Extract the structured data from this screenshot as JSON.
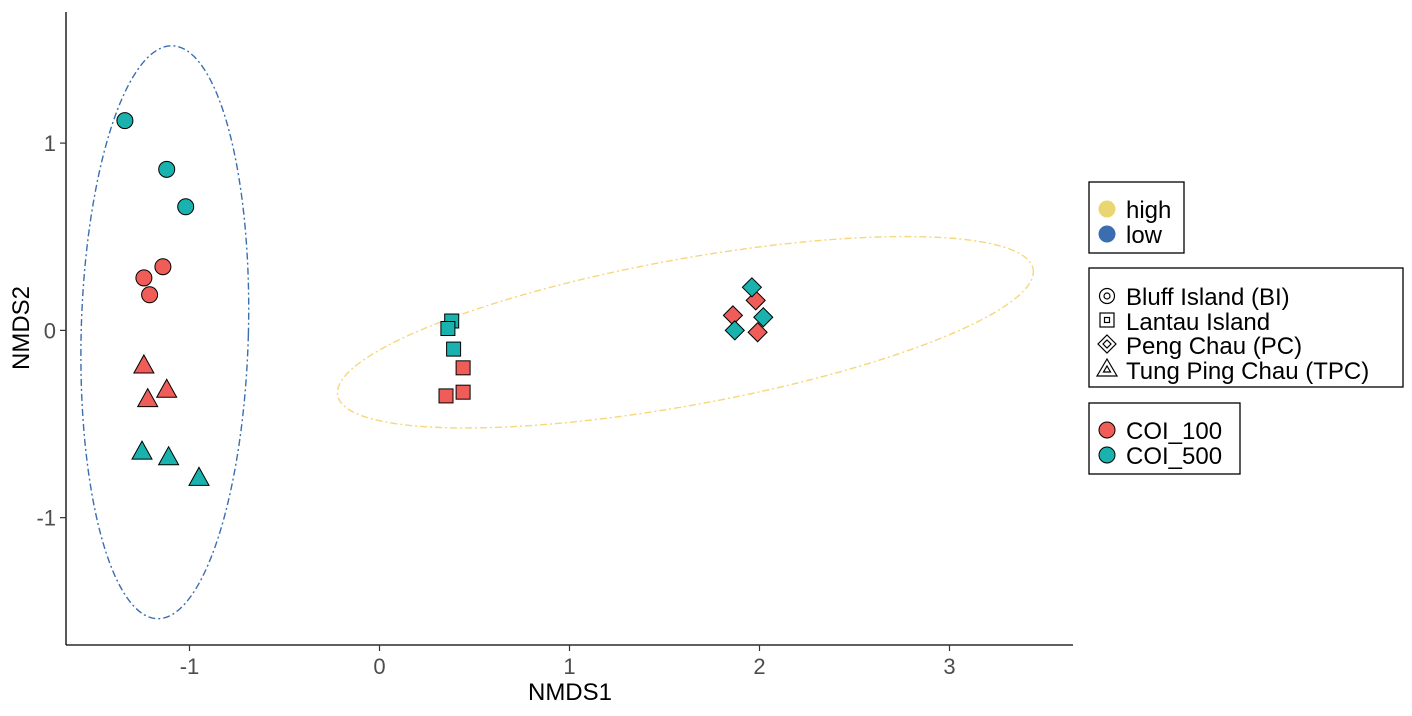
{
  "chart_data": {
    "type": "scatter",
    "xlabel": "NMDS1",
    "ylabel": "NMDS2",
    "xlim": [
      -1.65,
      3.65
    ],
    "ylim": [
      -1.68,
      1.7
    ],
    "x_ticks": [
      -1,
      0,
      1,
      2,
      3
    ],
    "y_ticks": [
      -1,
      0,
      1
    ],
    "grid": false,
    "legend_position": "right",
    "colors": {
      "COI_100": "#f05c58",
      "COI_500": "#1ab2ae",
      "high": "#f0d878",
      "low": "#3a6eb0",
      "high_ellipse": "#f6d77a",
      "low_ellipse": "#3a6eb0"
    },
    "legends": [
      {
        "title": "",
        "kind": "color-dot",
        "items": [
          {
            "label": "high",
            "color": "#ead671"
          },
          {
            "label": "low",
            "color": "#3a6eb0"
          }
        ]
      },
      {
        "title": "",
        "kind": "shape",
        "items": [
          {
            "label": "Bluff Island (BI)",
            "shape": "circle"
          },
          {
            "label": "Lantau Island",
            "shape": "square"
          },
          {
            "label": "Peng Chau (PC)",
            "shape": "diamond"
          },
          {
            "label": "Tung Ping Chau (TPC)",
            "shape": "triangle"
          }
        ]
      },
      {
        "title": "",
        "kind": "fill",
        "items": [
          {
            "label": "COI_100",
            "color": "#f05c58"
          },
          {
            "label": "COI_500",
            "color": "#1ab2ae"
          }
        ]
      }
    ],
    "ellipses": [
      {
        "group": "low",
        "cx": -1.13,
        "cy": -0.01,
        "rx": 0.44,
        "ry": 1.53,
        "angle_deg": -1.5
      },
      {
        "group": "high",
        "cx": 1.61,
        "cy": -0.01,
        "rx": 1.86,
        "ry": 0.39,
        "angle_deg": 10.3
      }
    ],
    "points": [
      {
        "x": -1.34,
        "y": 1.12,
        "site": "Bluff Island (BI)",
        "marker": "COI_500"
      },
      {
        "x": -1.12,
        "y": 0.86,
        "site": "Bluff Island (BI)",
        "marker": "COI_500"
      },
      {
        "x": -1.02,
        "y": 0.66,
        "site": "Bluff Island (BI)",
        "marker": "COI_500"
      },
      {
        "x": -1.24,
        "y": 0.28,
        "site": "Bluff Island (BI)",
        "marker": "COI_100"
      },
      {
        "x": -1.14,
        "y": 0.34,
        "site": "Bluff Island (BI)",
        "marker": "COI_100"
      },
      {
        "x": -1.21,
        "y": 0.19,
        "site": "Bluff Island (BI)",
        "marker": "COI_100"
      },
      {
        "x": -1.24,
        "y": -0.19,
        "site": "Tung Ping Chau (TPC)",
        "marker": "COI_100"
      },
      {
        "x": -1.12,
        "y": -0.32,
        "site": "Tung Ping Chau (TPC)",
        "marker": "COI_100"
      },
      {
        "x": -1.22,
        "y": -0.37,
        "site": "Tung Ping Chau (TPC)",
        "marker": "COI_100"
      },
      {
        "x": -1.25,
        "y": -0.65,
        "site": "Tung Ping Chau (TPC)",
        "marker": "COI_500"
      },
      {
        "x": -1.11,
        "y": -0.68,
        "site": "Tung Ping Chau (TPC)",
        "marker": "COI_500"
      },
      {
        "x": -0.95,
        "y": -0.79,
        "site": "Tung Ping Chau (TPC)",
        "marker": "COI_500"
      },
      {
        "x": 0.38,
        "y": 0.05,
        "site": "Lantau Island",
        "marker": "COI_500"
      },
      {
        "x": 0.36,
        "y": 0.01,
        "site": "Lantau Island",
        "marker": "COI_500"
      },
      {
        "x": 0.39,
        "y": -0.1,
        "site": "Lantau Island",
        "marker": "COI_500"
      },
      {
        "x": 0.44,
        "y": -0.2,
        "site": "Lantau Island",
        "marker": "COI_100"
      },
      {
        "x": 0.44,
        "y": -0.33,
        "site": "Lantau Island",
        "marker": "COI_100"
      },
      {
        "x": 0.35,
        "y": -0.35,
        "site": "Lantau Island",
        "marker": "COI_100"
      },
      {
        "x": 1.86,
        "y": 0.08,
        "site": "Peng Chau (PC)",
        "marker": "COI_100"
      },
      {
        "x": 1.98,
        "y": 0.16,
        "site": "Peng Chau (PC)",
        "marker": "COI_100"
      },
      {
        "x": 1.99,
        "y": -0.01,
        "site": "Peng Chau (PC)",
        "marker": "COI_100"
      },
      {
        "x": 1.96,
        "y": 0.23,
        "site": "Peng Chau (PC)",
        "marker": "COI_500"
      },
      {
        "x": 2.02,
        "y": 0.07,
        "site": "Peng Chau (PC)",
        "marker": "COI_500"
      },
      {
        "x": 1.87,
        "y": 0.0,
        "site": "Peng Chau (PC)",
        "marker": "COI_500"
      }
    ]
  }
}
